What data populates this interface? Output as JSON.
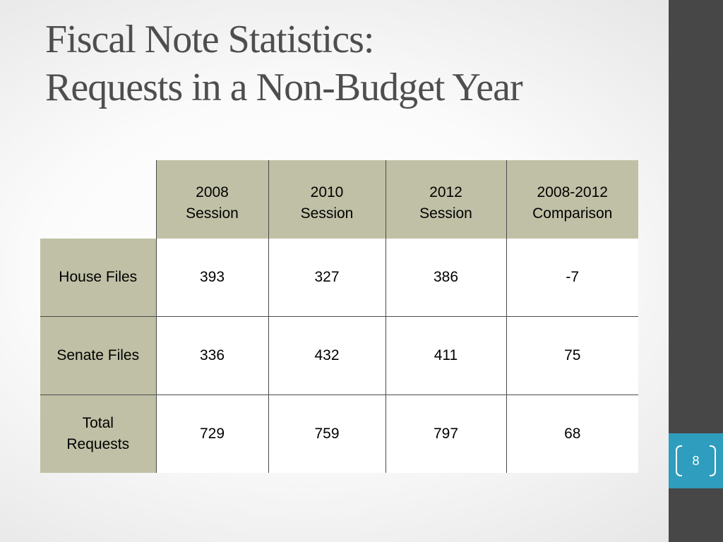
{
  "slide": {
    "title_line1": "Fiscal Note Statistics:",
    "title_line2": "Requests in a Non-Budget Year",
    "page_number": "8"
  },
  "table": {
    "columns": [
      {
        "line1": "2008",
        "line2": "Session"
      },
      {
        "line1": "2010",
        "line2": "Session"
      },
      {
        "line1": "2012",
        "line2": "Session"
      },
      {
        "line1": "2008-2012",
        "line2": "Comparison"
      }
    ],
    "rows": [
      {
        "label_line1": "House Files",
        "label_line2": "",
        "values": [
          "393",
          "327",
          "386",
          "-7"
        ]
      },
      {
        "label_line1": "Senate Files",
        "label_line2": "",
        "values": [
          "336",
          "432",
          "411",
          "75"
        ]
      },
      {
        "label_line1": "Total",
        "label_line2": "Requests",
        "values": [
          "729",
          "759",
          "797",
          "68"
        ]
      }
    ]
  },
  "colors": {
    "header_fill": "#c0c0a6",
    "sidebar": "#474747",
    "page_badge": "#2f9dbd",
    "title_text": "#4e4e4e"
  }
}
